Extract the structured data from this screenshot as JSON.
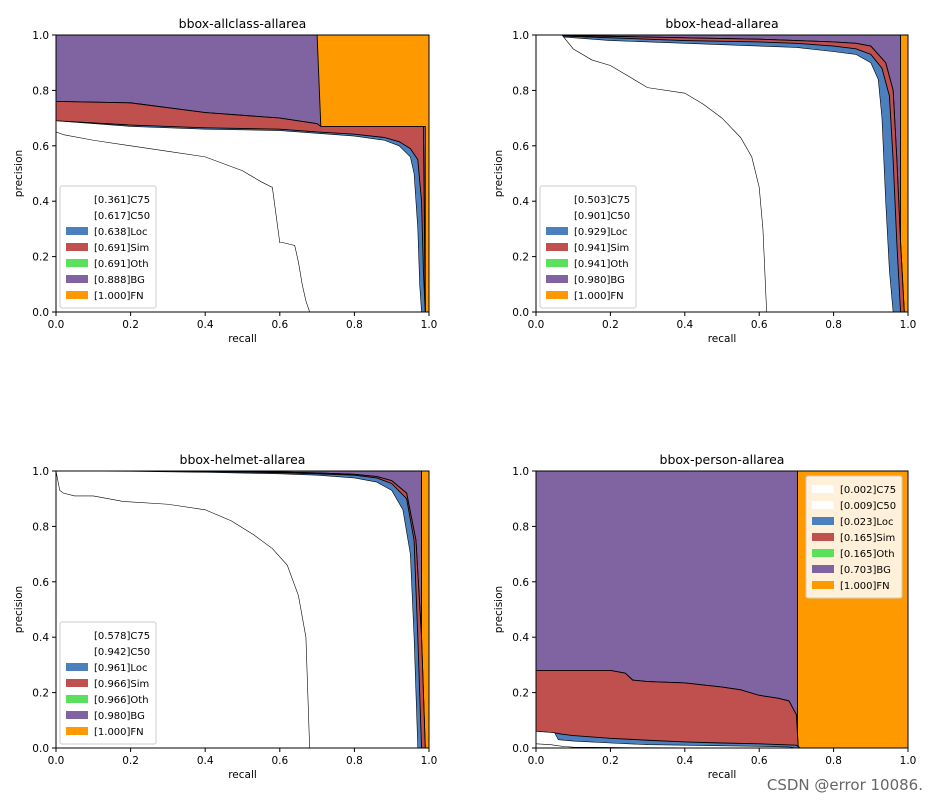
{
  "colors": {
    "C75": "#ffffff",
    "C50": "#ffffff",
    "Loc": "#4c7fbd",
    "Sim": "#c0504d",
    "Oth": "#5ae05a",
    "BG": "#8064a2",
    "FN": "#ff9900"
  },
  "chart_data": [
    {
      "type": "area",
      "title": "bbox-allclass-allarea",
      "xlabel": "recall",
      "ylabel": "precision",
      "xlim": [
        0,
        1
      ],
      "ylim": [
        0,
        1
      ],
      "xticks": [
        "0.0",
        "0.2",
        "0.4",
        "0.6",
        "0.8",
        "1.0"
      ],
      "yticks": [
        "0.0",
        "0.2",
        "0.4",
        "0.6",
        "0.8",
        "1.0"
      ],
      "legend_position": "lower-left",
      "legend": [
        "[0.361]C75",
        "[0.617]C50",
        "[0.638]Loc",
        "[0.691]Sim",
        "[0.691]Oth",
        "[0.888]BG",
        "[1.000]FN"
      ],
      "series": [
        {
          "name": "C75",
          "ap": 0.361,
          "x": [
            0,
            0.02,
            0.1,
            0.2,
            0.3,
            0.4,
            0.5,
            0.55,
            0.58,
            0.6,
            0.61,
            0.64,
            0.65,
            0.66,
            0.67,
            0.68
          ],
          "y": [
            0.65,
            0.64,
            0.62,
            0.6,
            0.58,
            0.56,
            0.51,
            0.47,
            0.45,
            0.25,
            0.25,
            0.24,
            0.18,
            0.1,
            0.04,
            0.0
          ]
        },
        {
          "name": "C50",
          "ap": 0.617,
          "x": [
            0,
            0.2,
            0.4,
            0.6,
            0.7,
            0.8,
            0.88,
            0.92,
            0.95,
            0.96,
            0.97,
            0.975,
            0.98
          ],
          "y": [
            0.69,
            0.67,
            0.66,
            0.655,
            0.645,
            0.635,
            0.62,
            0.6,
            0.56,
            0.5,
            0.3,
            0.1,
            0.0
          ]
        },
        {
          "name": "Loc",
          "ap": 0.638,
          "x": [
            0,
            0.2,
            0.4,
            0.6,
            0.7,
            0.8,
            0.88,
            0.92,
            0.95,
            0.97,
            0.98,
            0.985,
            0.99
          ],
          "y": [
            0.69,
            0.675,
            0.665,
            0.66,
            0.65,
            0.642,
            0.63,
            0.615,
            0.59,
            0.55,
            0.4,
            0.15,
            0.0
          ]
        },
        {
          "name": "Sim",
          "ap": 0.691,
          "x": [
            0,
            0.2,
            0.4,
            0.6,
            0.7,
            0.71,
            0.8,
            0.88,
            0.92,
            0.95,
            0.97,
            0.98,
            0.985,
            0.99
          ],
          "y": [
            0.76,
            0.755,
            0.72,
            0.7,
            0.68,
            0.67,
            0.67,
            0.67,
            0.67,
            0.67,
            0.67,
            0.67,
            0.67,
            0.0
          ]
        },
        {
          "name": "Oth",
          "ap": 0.691,
          "x": [
            0,
            0.2,
            0.4,
            0.6,
            0.7,
            0.71,
            0.8,
            0.88,
            0.92,
            0.95,
            0.97,
            0.98,
            0.985,
            0.99
          ],
          "y": [
            0.76,
            0.755,
            0.72,
            0.7,
            0.68,
            0.67,
            0.67,
            0.67,
            0.67,
            0.67,
            0.67,
            0.67,
            0.67,
            0.0
          ]
        },
        {
          "name": "BG",
          "ap": 0.888,
          "x": [
            0,
            0.7,
            0.71,
            0.99,
            0.99
          ],
          "y": [
            1.0,
            1.0,
            0.67,
            0.67,
            0.0
          ]
        },
        {
          "name": "FN",
          "ap": 1.0,
          "x": [
            0,
            1.0,
            1.0
          ],
          "y": [
            1.0,
            1.0,
            0.0
          ]
        }
      ]
    },
    {
      "type": "area",
      "title": "bbox-head-allarea",
      "xlabel": "recall",
      "ylabel": "precision",
      "xlim": [
        0,
        1
      ],
      "ylim": [
        0,
        1
      ],
      "xticks": [
        "0.0",
        "0.2",
        "0.4",
        "0.6",
        "0.8",
        "1.0"
      ],
      "yticks": [
        "0.0",
        "0.2",
        "0.4",
        "0.6",
        "0.8",
        "1.0"
      ],
      "legend_position": "lower-left",
      "legend": [
        "[0.503]C75",
        "[0.901]C50",
        "[0.929]Loc",
        "[0.941]Sim",
        "[0.941]Oth",
        "[0.980]BG",
        "[1.000]FN"
      ],
      "series": [
        {
          "name": "C75",
          "ap": 0.503,
          "x": [
            0,
            0.07,
            0.1,
            0.15,
            0.2,
            0.25,
            0.3,
            0.4,
            0.45,
            0.5,
            0.55,
            0.58,
            0.6,
            0.61,
            0.615,
            0.62
          ],
          "y": [
            1.0,
            1.0,
            0.95,
            0.91,
            0.89,
            0.85,
            0.81,
            0.79,
            0.75,
            0.7,
            0.63,
            0.56,
            0.45,
            0.3,
            0.15,
            0.0
          ]
        },
        {
          "name": "C50",
          "ap": 0.901,
          "x": [
            0,
            0.2,
            0.4,
            0.6,
            0.7,
            0.8,
            0.86,
            0.9,
            0.92,
            0.93,
            0.94,
            0.95,
            0.96
          ],
          "y": [
            1.0,
            0.98,
            0.97,
            0.96,
            0.955,
            0.94,
            0.93,
            0.9,
            0.84,
            0.7,
            0.4,
            0.15,
            0.0
          ]
        },
        {
          "name": "Loc",
          "ap": 0.929,
          "x": [
            0,
            0.2,
            0.4,
            0.6,
            0.7,
            0.8,
            0.86,
            0.9,
            0.93,
            0.95,
            0.96,
            0.97,
            0.98
          ],
          "y": [
            1.0,
            0.99,
            0.98,
            0.975,
            0.97,
            0.96,
            0.95,
            0.93,
            0.88,
            0.78,
            0.55,
            0.25,
            0.0
          ]
        },
        {
          "name": "Sim",
          "ap": 0.941,
          "x": [
            0,
            0.2,
            0.4,
            0.6,
            0.7,
            0.8,
            0.86,
            0.9,
            0.94,
            0.96,
            0.97,
            0.98,
            0.99
          ],
          "y": [
            1.0,
            0.995,
            0.99,
            0.985,
            0.98,
            0.975,
            0.97,
            0.96,
            0.9,
            0.8,
            0.55,
            0.25,
            0.0
          ]
        },
        {
          "name": "Oth",
          "ap": 0.941,
          "x": [
            0,
            0.2,
            0.4,
            0.6,
            0.7,
            0.8,
            0.86,
            0.9,
            0.94,
            0.96,
            0.97,
            0.98,
            0.99
          ],
          "y": [
            1.0,
            0.995,
            0.99,
            0.985,
            0.98,
            0.975,
            0.97,
            0.96,
            0.9,
            0.8,
            0.55,
            0.25,
            0.0
          ]
        },
        {
          "name": "BG",
          "ap": 0.98,
          "x": [
            0,
            0.98,
            0.98
          ],
          "y": [
            1.0,
            1.0,
            0.0
          ]
        },
        {
          "name": "FN",
          "ap": 1.0,
          "x": [
            0,
            1.0,
            1.0
          ],
          "y": [
            1.0,
            1.0,
            0.0
          ]
        }
      ]
    },
    {
      "type": "area",
      "title": "bbox-helmet-allarea",
      "xlabel": "recall",
      "ylabel": "precision",
      "xlim": [
        0,
        1
      ],
      "ylim": [
        0,
        1
      ],
      "xticks": [
        "0.0",
        "0.2",
        "0.4",
        "0.6",
        "0.8",
        "1.0"
      ],
      "yticks": [
        "0.0",
        "0.2",
        "0.4",
        "0.6",
        "0.8",
        "1.0"
      ],
      "legend_position": "lower-left",
      "legend": [
        "[0.578]C75",
        "[0.942]C50",
        "[0.961]Loc",
        "[0.966]Sim",
        "[0.966]Oth",
        "[0.980]BG",
        "[1.000]FN"
      ],
      "series": [
        {
          "name": "C75",
          "ap": 0.578,
          "x": [
            0,
            0.01,
            0.02,
            0.05,
            0.1,
            0.18,
            0.3,
            0.4,
            0.47,
            0.53,
            0.58,
            0.62,
            0.65,
            0.67,
            0.675,
            0.68
          ],
          "y": [
            1.0,
            0.93,
            0.92,
            0.91,
            0.91,
            0.89,
            0.88,
            0.86,
            0.82,
            0.77,
            0.72,
            0.66,
            0.55,
            0.4,
            0.2,
            0.0
          ]
        },
        {
          "name": "C50",
          "ap": 0.942,
          "x": [
            0,
            0.2,
            0.4,
            0.6,
            0.7,
            0.8,
            0.86,
            0.9,
            0.93,
            0.95,
            0.96,
            0.97
          ],
          "y": [
            1.0,
            0.999,
            0.995,
            0.99,
            0.985,
            0.975,
            0.96,
            0.93,
            0.86,
            0.7,
            0.4,
            0.0
          ]
        },
        {
          "name": "Loc",
          "ap": 0.961,
          "x": [
            0,
            0.2,
            0.4,
            0.6,
            0.7,
            0.8,
            0.86,
            0.9,
            0.94,
            0.96,
            0.97,
            0.98
          ],
          "y": [
            1.0,
            1.0,
            0.998,
            0.994,
            0.99,
            0.985,
            0.975,
            0.955,
            0.9,
            0.75,
            0.4,
            0.0
          ]
        },
        {
          "name": "Sim",
          "ap": 0.966,
          "x": [
            0,
            0.2,
            0.4,
            0.6,
            0.7,
            0.8,
            0.86,
            0.9,
            0.94,
            0.965,
            0.98,
            0.99
          ],
          "y": [
            1.0,
            1.0,
            0.999,
            0.996,
            0.993,
            0.988,
            0.98,
            0.965,
            0.92,
            0.75,
            0.4,
            0.0
          ]
        },
        {
          "name": "Oth",
          "ap": 0.966,
          "x": [
            0,
            0.2,
            0.4,
            0.6,
            0.7,
            0.8,
            0.86,
            0.9,
            0.94,
            0.965,
            0.98,
            0.99
          ],
          "y": [
            1.0,
            1.0,
            0.999,
            0.996,
            0.993,
            0.988,
            0.98,
            0.965,
            0.92,
            0.75,
            0.4,
            0.0
          ]
        },
        {
          "name": "BG",
          "ap": 0.98,
          "x": [
            0,
            0.98,
            0.98
          ],
          "y": [
            1.0,
            1.0,
            0.0
          ]
        },
        {
          "name": "FN",
          "ap": 1.0,
          "x": [
            0,
            1.0,
            1.0
          ],
          "y": [
            1.0,
            1.0,
            0.0
          ]
        }
      ]
    },
    {
      "type": "area",
      "title": "bbox-person-allarea",
      "xlabel": "recall",
      "ylabel": "precision",
      "xlim": [
        0,
        1
      ],
      "ylim": [
        0,
        1
      ],
      "xticks": [
        "0.0",
        "0.2",
        "0.4",
        "0.6",
        "0.8",
        "1.0"
      ],
      "yticks": [
        "0.0",
        "0.2",
        "0.4",
        "0.6",
        "0.8",
        "1.0"
      ],
      "legend_position": "upper-right",
      "legend": [
        "[0.002]C75",
        "[0.009]C50",
        "[0.023]Loc",
        "[0.165]Sim",
        "[0.165]Oth",
        "[0.703]BG",
        "[1.000]FN"
      ],
      "series": [
        {
          "name": "C75",
          "ap": 0.002,
          "x": [
            0,
            0.04,
            0.06,
            0.08,
            0.1,
            0.2,
            0.3,
            0.4,
            0.5
          ],
          "y": [
            0.015,
            0.012,
            0.008,
            0.005,
            0.003,
            0.002,
            0.001,
            0.0005,
            0.0
          ]
        },
        {
          "name": "C50",
          "ap": 0.009,
          "x": [
            0,
            0.05,
            0.06,
            0.1,
            0.2,
            0.3,
            0.4,
            0.5,
            0.6,
            0.68,
            0.7
          ],
          "y": [
            0.06,
            0.055,
            0.03,
            0.025,
            0.018,
            0.012,
            0.01,
            0.008,
            0.006,
            0.004,
            0.0
          ]
        },
        {
          "name": "Loc",
          "ap": 0.023,
          "x": [
            0,
            0.05,
            0.07,
            0.1,
            0.2,
            0.3,
            0.4,
            0.5,
            0.6,
            0.7,
            0.71
          ],
          "y": [
            0.06,
            0.055,
            0.05,
            0.045,
            0.035,
            0.028,
            0.022,
            0.018,
            0.015,
            0.01,
            0.0
          ]
        },
        {
          "name": "Sim",
          "ap": 0.165,
          "x": [
            0,
            0.1,
            0.2,
            0.24,
            0.26,
            0.3,
            0.4,
            0.5,
            0.55,
            0.6,
            0.65,
            0.68,
            0.7,
            0.705
          ],
          "y": [
            0.28,
            0.28,
            0.28,
            0.27,
            0.245,
            0.24,
            0.235,
            0.22,
            0.21,
            0.19,
            0.18,
            0.17,
            0.12,
            0.0
          ]
        },
        {
          "name": "Oth",
          "ap": 0.165,
          "x": [
            0,
            0.1,
            0.2,
            0.24,
            0.26,
            0.3,
            0.4,
            0.5,
            0.55,
            0.6,
            0.65,
            0.68,
            0.7,
            0.705
          ],
          "y": [
            0.28,
            0.28,
            0.28,
            0.27,
            0.245,
            0.24,
            0.235,
            0.22,
            0.21,
            0.19,
            0.18,
            0.17,
            0.12,
            0.0
          ]
        },
        {
          "name": "BG",
          "ap": 0.703,
          "x": [
            0,
            0.703,
            0.703
          ],
          "y": [
            1.0,
            1.0,
            0.0
          ]
        },
        {
          "name": "FN",
          "ap": 1.0,
          "x": [
            0,
            1.0,
            1.0
          ],
          "y": [
            1.0,
            1.0,
            0.0
          ]
        }
      ]
    }
  ],
  "watermark": "CSDN @error 10086."
}
